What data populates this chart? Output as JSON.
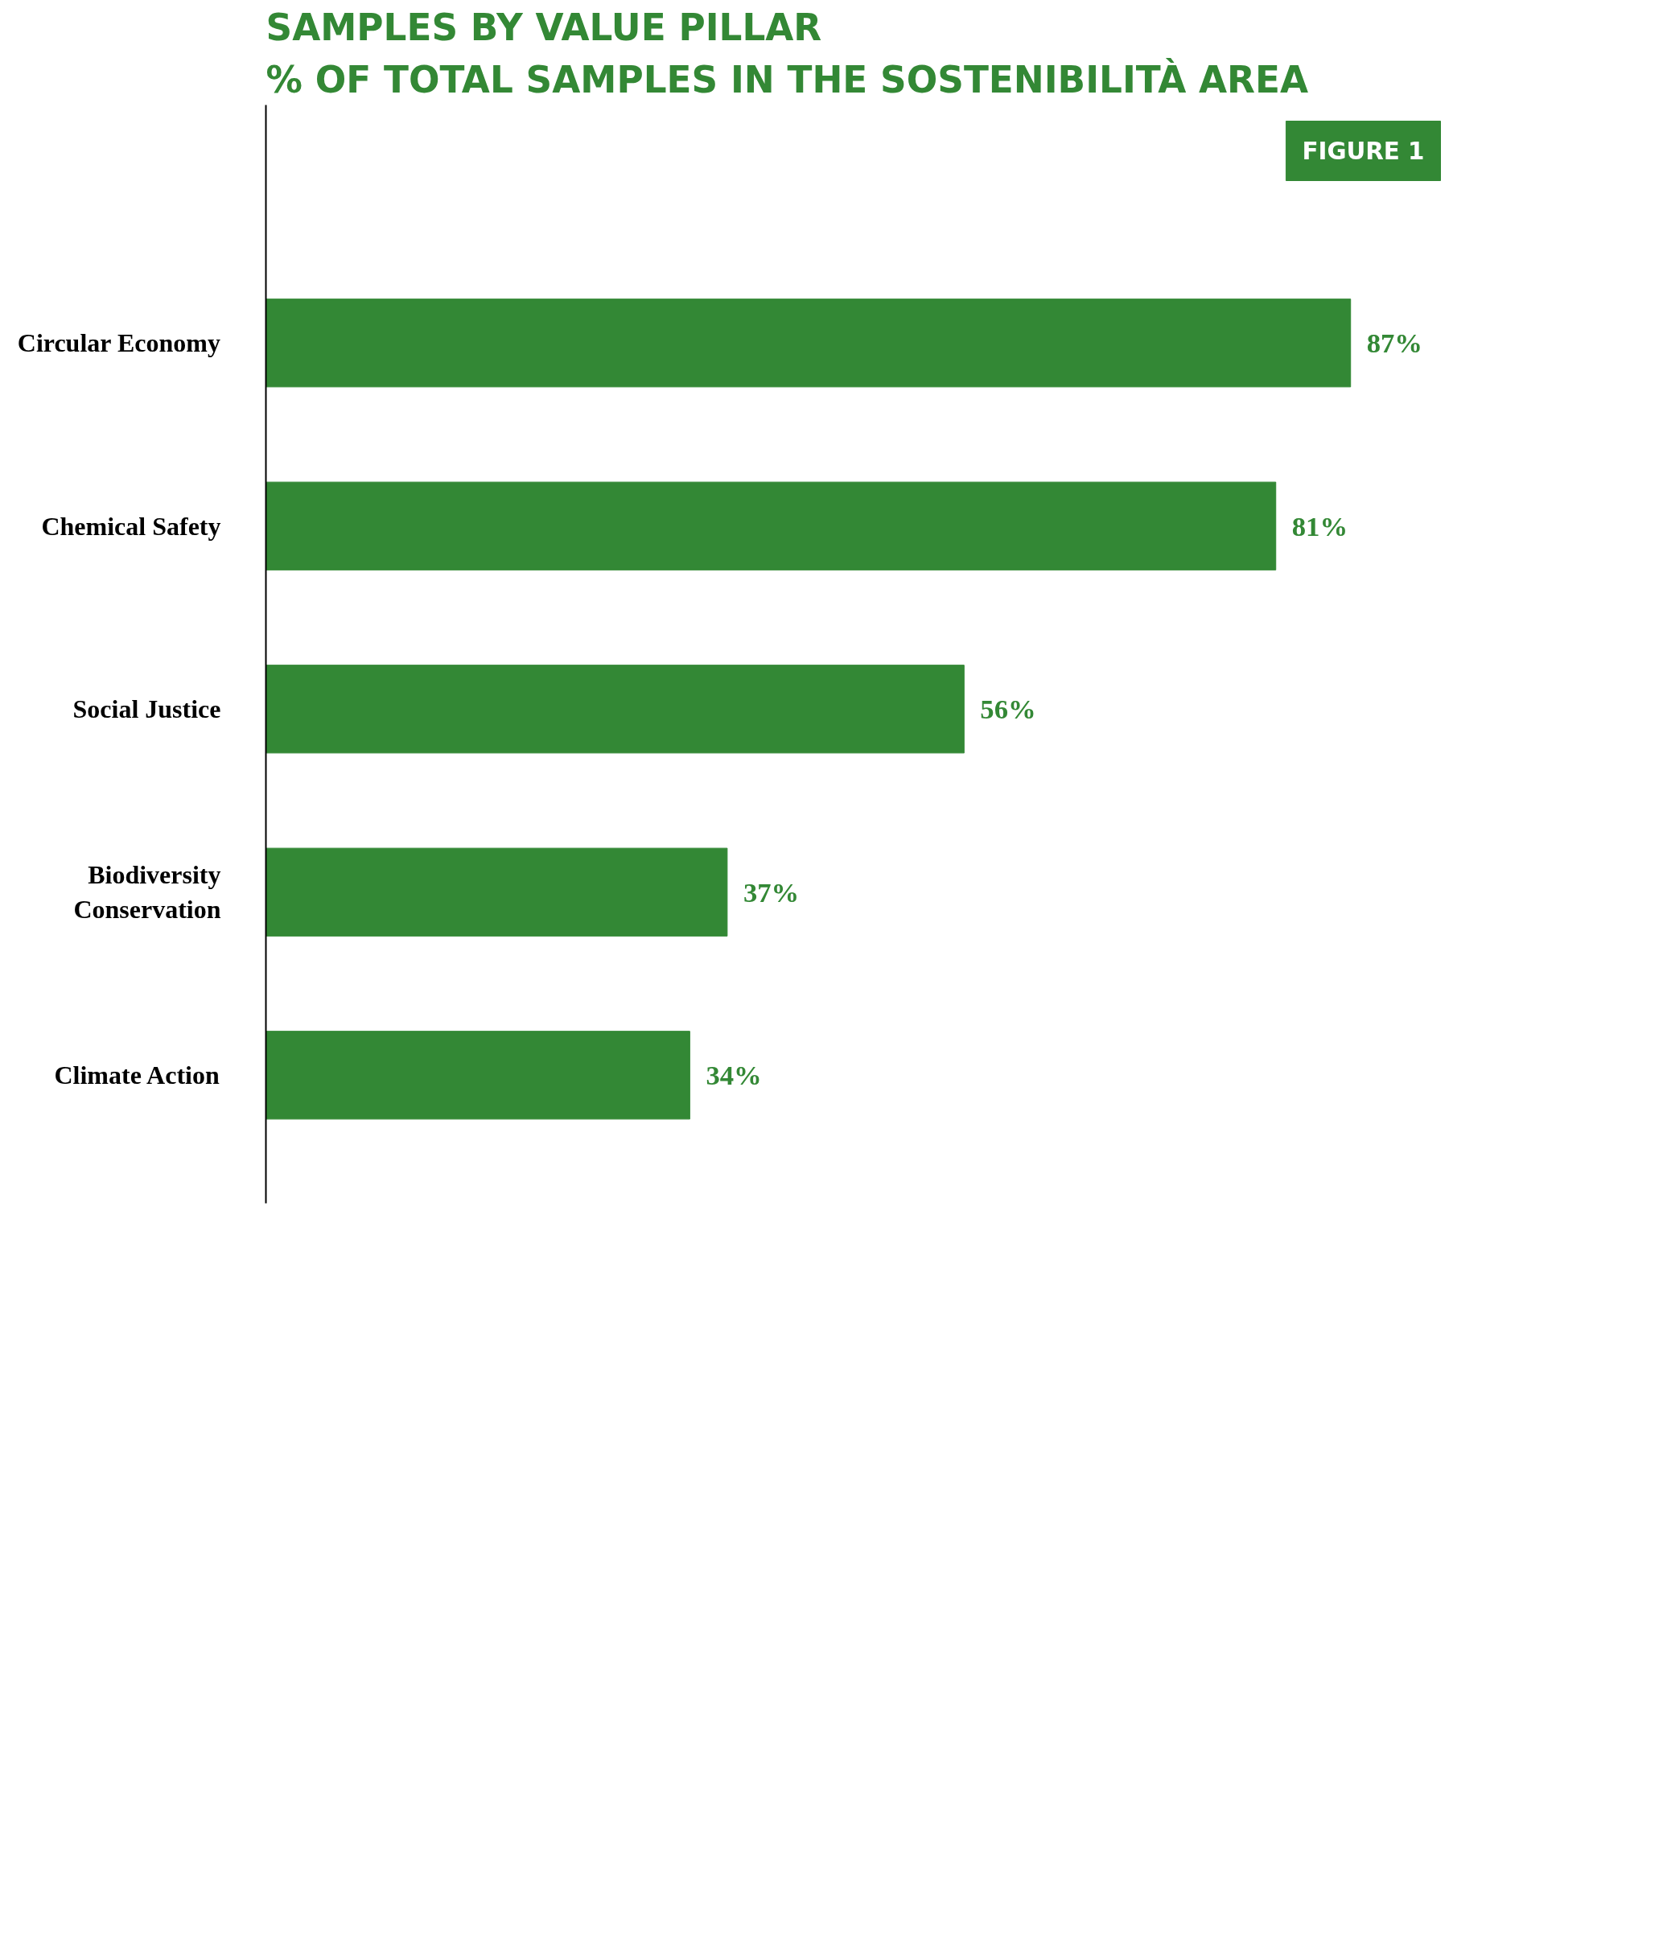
{
  "chart_data": {
    "type": "bar",
    "orientation": "horizontal",
    "title": "SAMPLES BY VALUE PILLAR",
    "subtitle": "% OF TOTAL SAMPLES IN THE SOSTENIBILITÀ AREA",
    "categories": [
      "Circular Economy",
      "Chemical Safety",
      "Social Justice",
      "Biodiversity Conservation",
      "Climate Action"
    ],
    "values": [
      87,
      81,
      56,
      37,
      34
    ],
    "value_labels": [
      "87%",
      "81%",
      "56%",
      "37%",
      "34%"
    ],
    "color": "#338835",
    "annotations": [
      "FIGURE 1"
    ],
    "grid": false
  }
}
